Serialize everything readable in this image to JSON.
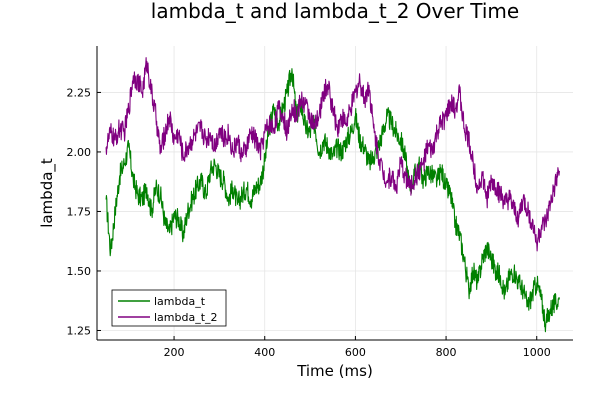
{
  "chart_data": {
    "type": "line",
    "title": "lambda_t and lambda_t_2 Over Time",
    "xlabel": "Time (ms)",
    "ylabel": "lambda_t",
    "xlim": [
      30,
      1080
    ],
    "ylim": [
      1.21,
      2.445
    ],
    "xticks": [
      200,
      400,
      600,
      800,
      1000
    ],
    "yticks": [
      1.25,
      1.5,
      1.75,
      2.0,
      2.25
    ],
    "xtick_labels": [
      "200",
      "400",
      "600",
      "800",
      "1000"
    ],
    "ytick_labels": [
      "1.25",
      "1.50",
      "1.75",
      "2.00",
      "2.25"
    ],
    "grid": true,
    "legend_position": "bottom-left",
    "series": [
      {
        "name": "lambda_t",
        "color": "#008000",
        "points": [
          [
            50,
            1.8
          ],
          [
            60,
            1.58
          ],
          [
            70,
            1.75
          ],
          [
            80,
            1.9
          ],
          [
            90,
            1.95
          ],
          [
            100,
            2.02
          ],
          [
            110,
            1.88
          ],
          [
            120,
            1.82
          ],
          [
            130,
            1.8
          ],
          [
            140,
            1.85
          ],
          [
            150,
            1.75
          ],
          [
            160,
            1.85
          ],
          [
            170,
            1.82
          ],
          [
            180,
            1.7
          ],
          [
            190,
            1.66
          ],
          [
            200,
            1.73
          ],
          [
            210,
            1.72
          ],
          [
            220,
            1.65
          ],
          [
            230,
            1.75
          ],
          [
            240,
            1.8
          ],
          [
            250,
            1.85
          ],
          [
            260,
            1.88
          ],
          [
            270,
            1.82
          ],
          [
            280,
            1.92
          ],
          [
            290,
            1.95
          ],
          [
            300,
            1.9
          ],
          [
            310,
            1.88
          ],
          [
            320,
            1.8
          ],
          [
            330,
            1.85
          ],
          [
            340,
            1.78
          ],
          [
            350,
            1.82
          ],
          [
            360,
            1.85
          ],
          [
            370,
            1.8
          ],
          [
            380,
            1.85
          ],
          [
            390,
            1.87
          ],
          [
            400,
            1.96
          ],
          [
            410,
            2.1
          ],
          [
            420,
            2.18
          ],
          [
            430,
            2.12
          ],
          [
            440,
            2.18
          ],
          [
            450,
            2.25
          ],
          [
            460,
            2.35
          ],
          [
            470,
            2.15
          ],
          [
            480,
            2.2
          ],
          [
            490,
            2.1
          ],
          [
            500,
            2.08
          ],
          [
            510,
            2.12
          ],
          [
            520,
            2.0
          ],
          [
            530,
            2.05
          ],
          [
            540,
            2.02
          ],
          [
            550,
            1.98
          ],
          [
            560,
            2.02
          ],
          [
            570,
            2.0
          ],
          [
            580,
            2.05
          ],
          [
            590,
            2.08
          ],
          [
            600,
            2.15
          ],
          [
            610,
            2.05
          ],
          [
            620,
            2.02
          ],
          [
            630,
            1.95
          ],
          [
            640,
            1.98
          ],
          [
            650,
            2.02
          ],
          [
            660,
            2.08
          ],
          [
            670,
            2.15
          ],
          [
            680,
            2.12
          ],
          [
            690,
            2.08
          ],
          [
            700,
            2.05
          ],
          [
            710,
            1.98
          ],
          [
            720,
            1.85
          ],
          [
            730,
            1.9
          ],
          [
            740,
            1.95
          ],
          [
            750,
            1.88
          ],
          [
            760,
            1.92
          ],
          [
            770,
            1.9
          ],
          [
            780,
            1.88
          ],
          [
            790,
            1.92
          ],
          [
            800,
            1.85
          ],
          [
            810,
            1.82
          ],
          [
            820,
            1.7
          ],
          [
            830,
            1.65
          ],
          [
            840,
            1.55
          ],
          [
            850,
            1.42
          ],
          [
            860,
            1.5
          ],
          [
            870,
            1.45
          ],
          [
            880,
            1.55
          ],
          [
            890,
            1.6
          ],
          [
            900,
            1.55
          ],
          [
            910,
            1.5
          ],
          [
            920,
            1.48
          ],
          [
            930,
            1.4
          ],
          [
            940,
            1.48
          ],
          [
            950,
            1.5
          ],
          [
            960,
            1.45
          ],
          [
            970,
            1.42
          ],
          [
            980,
            1.35
          ],
          [
            990,
            1.4
          ],
          [
            1000,
            1.45
          ],
          [
            1010,
            1.38
          ],
          [
            1020,
            1.28
          ],
          [
            1030,
            1.34
          ],
          [
            1040,
            1.36
          ],
          [
            1050,
            1.38
          ]
        ]
      },
      {
        "name": "lambda_t_2",
        "color": "#800080",
        "points": [
          [
            50,
            2.02
          ],
          [
            60,
            2.08
          ],
          [
            70,
            2.05
          ],
          [
            80,
            2.1
          ],
          [
            90,
            2.08
          ],
          [
            100,
            2.18
          ],
          [
            110,
            2.32
          ],
          [
            120,
            2.3
          ],
          [
            130,
            2.25
          ],
          [
            140,
            2.38
          ],
          [
            150,
            2.25
          ],
          [
            160,
            2.15
          ],
          [
            170,
            2.0
          ],
          [
            180,
            2.08
          ],
          [
            190,
            2.15
          ],
          [
            200,
            2.05
          ],
          [
            210,
            2.08
          ],
          [
            220,
            1.98
          ],
          [
            230,
            2.02
          ],
          [
            240,
            2.05
          ],
          [
            250,
            2.08
          ],
          [
            260,
            2.1
          ],
          [
            270,
            2.05
          ],
          [
            280,
            2.08
          ],
          [
            290,
            2.02
          ],
          [
            300,
            2.1
          ],
          [
            310,
            2.05
          ],
          [
            320,
            2.08
          ],
          [
            330,
            2.0
          ],
          [
            340,
            2.05
          ],
          [
            350,
            1.98
          ],
          [
            360,
            2.02
          ],
          [
            370,
            2.08
          ],
          [
            380,
            2.05
          ],
          [
            390,
            2.0
          ],
          [
            400,
            2.08
          ],
          [
            410,
            2.12
          ],
          [
            420,
            2.1
          ],
          [
            430,
            2.18
          ],
          [
            440,
            2.15
          ],
          [
            450,
            2.08
          ],
          [
            460,
            2.2
          ],
          [
            470,
            2.15
          ],
          [
            480,
            2.22
          ],
          [
            490,
            2.2
          ],
          [
            500,
            2.15
          ],
          [
            510,
            2.1
          ],
          [
            520,
            2.15
          ],
          [
            530,
            2.25
          ],
          [
            540,
            2.28
          ],
          [
            550,
            2.18
          ],
          [
            560,
            2.1
          ],
          [
            570,
            2.15
          ],
          [
            580,
            2.12
          ],
          [
            590,
            2.18
          ],
          [
            600,
            2.25
          ],
          [
            610,
            2.3
          ],
          [
            620,
            2.22
          ],
          [
            630,
            2.28
          ],
          [
            640,
            2.1
          ],
          [
            650,
            2.0
          ],
          [
            660,
            1.92
          ],
          [
            670,
            1.88
          ],
          [
            680,
            1.9
          ],
          [
            690,
            1.85
          ],
          [
            700,
            1.95
          ],
          [
            710,
            1.9
          ],
          [
            720,
            1.85
          ],
          [
            730,
            1.88
          ],
          [
            740,
            1.92
          ],
          [
            750,
            1.95
          ],
          [
            760,
            2.02
          ],
          [
            770,
            2.0
          ],
          [
            780,
            2.08
          ],
          [
            790,
            2.12
          ],
          [
            800,
            2.15
          ],
          [
            810,
            2.2
          ],
          [
            820,
            2.18
          ],
          [
            830,
            2.25
          ],
          [
            840,
            2.1
          ],
          [
            850,
            2.05
          ],
          [
            860,
            1.95
          ],
          [
            870,
            1.85
          ],
          [
            880,
            1.9
          ],
          [
            890,
            1.8
          ],
          [
            900,
            1.88
          ],
          [
            910,
            1.85
          ],
          [
            920,
            1.82
          ],
          [
            930,
            1.78
          ],
          [
            940,
            1.8
          ],
          [
            950,
            1.75
          ],
          [
            960,
            1.72
          ],
          [
            970,
            1.8
          ],
          [
            980,
            1.75
          ],
          [
            990,
            1.7
          ],
          [
            1000,
            1.62
          ],
          [
            1010,
            1.68
          ],
          [
            1020,
            1.7
          ],
          [
            1030,
            1.78
          ],
          [
            1040,
            1.85
          ],
          [
            1050,
            1.92
          ]
        ]
      }
    ]
  }
}
